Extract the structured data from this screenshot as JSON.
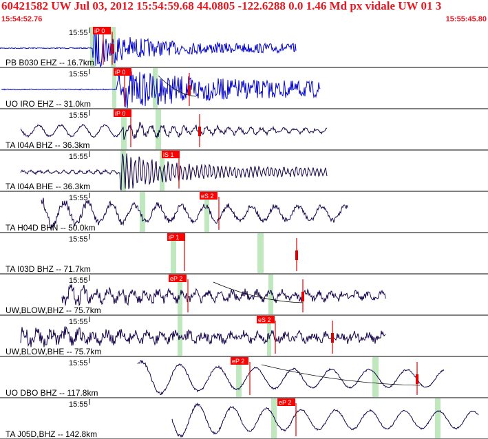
{
  "header": {
    "title": "60421582 UW Jul 03, 2012 15:54:59.68   44.0805 -122.6288  0.0 1.46 Md px vidale UW 01   3",
    "start_time": "15:54:52.76",
    "end_time": "15:55:45.80"
  },
  "time_tick_label": "15:55",
  "colors": {
    "header_text": "#e8171f",
    "pick_box": "#ff0000",
    "pick_line": "#e00000",
    "green_band": "#bfe8bf",
    "trace_blue": "#0000cc",
    "trace_dark": "#14004a",
    "separator": "#000000"
  },
  "traces": [
    {
      "label": "PB B030 EHZ -- 16.7km",
      "pick": "iP 0",
      "color": "blue"
    },
    {
      "label": "UO IRO EHZ -- 31.0km",
      "pick": "iP 0",
      "color": "blue"
    },
    {
      "label": "TA I04A BHZ -- 36.3km",
      "pick": "iP 0",
      "color": "dark"
    },
    {
      "label": "TA I04A BHE -- 36.3km",
      "pick": "iS 1",
      "color": "dark"
    },
    {
      "label": "TA H04D BHN -- 50.0km",
      "pick": "eS 2",
      "color": "dark"
    },
    {
      "label": "TA I03D BHZ -- 71.7km",
      "pick": "iP 1",
      "color": "dark"
    },
    {
      "label": "UW,BLOW,BHZ -- 75.7km",
      "pick": "eP 2",
      "color": "dark"
    },
    {
      "label": "UW,BLOW,BHE -- 75.7km",
      "pick": "eS 2",
      "color": "dark"
    },
    {
      "label": "UO DBO BHZ -- 117.8km",
      "pick": "eP 2",
      "color": "dark"
    },
    {
      "label": "TA J05D,BHZ -- 142.8km",
      "pick": "eP 2",
      "color": "dark"
    }
  ]
}
